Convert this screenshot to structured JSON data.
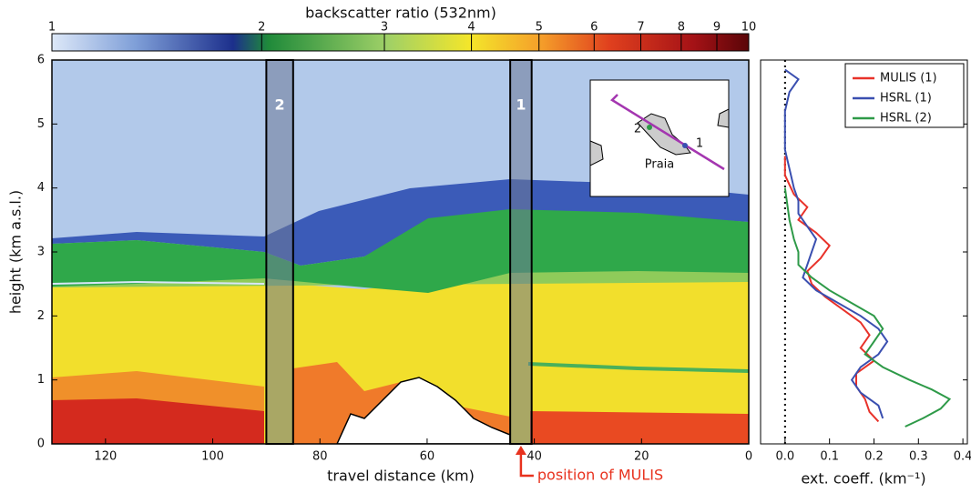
{
  "chart_data": [
    {
      "type": "heatmap",
      "colorbar_label": "backscatter ratio (532nm)",
      "colorbar_lim": [
        1,
        10
      ],
      "colorbar_ticks": [
        1,
        2,
        3,
        4,
        5,
        6,
        7,
        8,
        9,
        10
      ],
      "colorbar_log": true,
      "x_label": "travel distance (km)",
      "y_label": "height (km a.s.l.)",
      "xlim": [
        130,
        0
      ],
      "xticks": [
        120,
        100,
        80,
        60,
        40,
        20,
        0
      ],
      "ylim": [
        0,
        6
      ],
      "yticks": [
        0,
        1,
        2,
        3,
        4,
        5,
        6
      ],
      "highlights": [
        {
          "label": "2",
          "range": [
            90,
            85
          ]
        },
        {
          "label": "1",
          "range": [
            44.5,
            40.5
          ]
        }
      ],
      "inset_labels": [
        "2",
        "1",
        "Praia"
      ],
      "annotation": "position of MULIS"
    },
    {
      "type": "line",
      "x_label": "ext. coeff. (km⁻¹)",
      "xlim": [
        -0.055,
        0.41
      ],
      "xticks": [
        {
          "value": 0,
          "label": "0.0"
        },
        0.1,
        0.2,
        0.3,
        0.4
      ],
      "legend": "upper right",
      "series": [
        {
          "name": "MULIS (1)",
          "color": "#e8322a",
          "heights": [
            0.35,
            0.5,
            0.7,
            0.9,
            1.1,
            1.3,
            1.5,
            1.7,
            1.9,
            2.1,
            2.3,
            2.5,
            2.7,
            2.9,
            3.1,
            3.3,
            3.5,
            3.7,
            3.9,
            4.2,
            4.5
          ],
          "values": [
            0.21,
            0.19,
            0.18,
            0.16,
            0.16,
            0.2,
            0.17,
            0.19,
            0.17,
            0.13,
            0.09,
            0.06,
            0.05,
            0.08,
            0.1,
            0.07,
            0.03,
            0.05,
            0.02,
            0,
            0
          ]
        },
        {
          "name": "HSRL (1)",
          "color": "#3a4fb0",
          "heights": [
            0.4,
            0.6,
            0.8,
            1.0,
            1.2,
            1.4,
            1.6,
            1.8,
            2.0,
            2.2,
            2.4,
            2.6,
            2.8,
            3.0,
            3.2,
            3.4,
            3.6,
            3.8,
            4.0,
            4.3,
            4.6,
            4.9,
            5.2,
            5.5,
            5.7,
            5.85
          ],
          "values": [
            0.22,
            0.21,
            0.17,
            0.15,
            0.17,
            0.21,
            0.23,
            0.21,
            0.17,
            0.12,
            0.07,
            0.04,
            0.05,
            0.06,
            0.07,
            0.05,
            0.03,
            0.03,
            0.02,
            0.01,
            0,
            0,
            0,
            0.01,
            0.03,
            0
          ]
        },
        {
          "name": "HSRL (2)",
          "color": "#2e9a48",
          "heights": [
            0.27,
            0.4,
            0.55,
            0.7,
            0.85,
            1.0,
            1.2,
            1.4,
            1.6,
            1.8,
            2.0,
            2.2,
            2.4,
            2.6,
            2.8,
            3.0,
            3.2,
            3.5,
            4.0
          ],
          "values": [
            0.27,
            0.31,
            0.35,
            0.37,
            0.33,
            0.28,
            0.22,
            0.18,
            0.2,
            0.22,
            0.2,
            0.15,
            0.1,
            0.06,
            0.03,
            0.03,
            0.02,
            0.01,
            0
          ]
        }
      ]
    }
  ]
}
